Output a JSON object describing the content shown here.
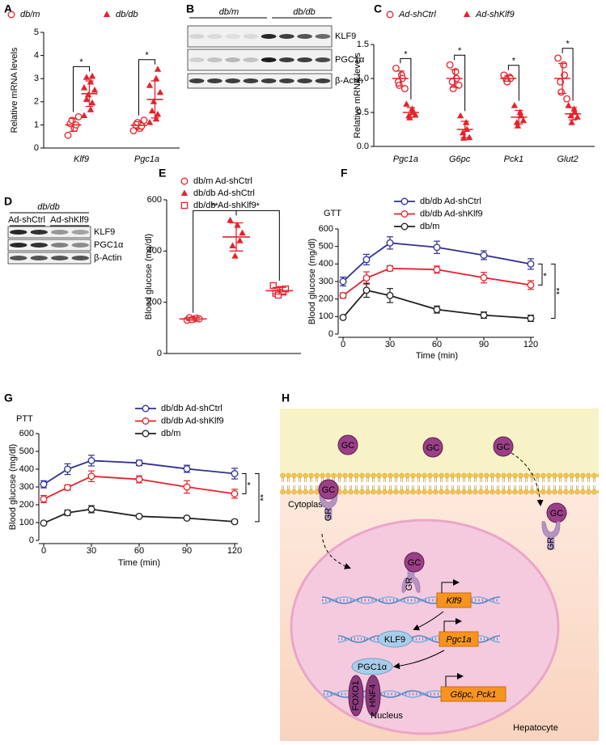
{
  "panel_labels": [
    "A",
    "B",
    "C",
    "D",
    "E",
    "F",
    "G",
    "H"
  ],
  "chart_data": [
    {
      "type": "dot",
      "y_label": "Relative mRNA levels",
      "categories": [
        "Klf9",
        "Pgc1a"
      ],
      "ylim": [
        0,
        5
      ],
      "yticks": [
        0,
        1,
        2,
        3,
        4,
        5
      ],
      "significance": [
        "*",
        "*"
      ],
      "series": [
        {
          "name": "db/m",
          "color": "#e8202a",
          "marker": "circle-open",
          "values": [
            [
              0.55,
              0.85,
              1.0,
              1.05,
              1.2,
              1.35
            ],
            [
              0.75,
              0.85,
              0.95,
              1.0,
              1.1,
              1.2
            ]
          ],
          "mean": [
            1.0,
            0.98
          ],
          "sd": [
            0.28,
            0.16
          ]
        },
        {
          "name": "db/db",
          "color": "#e8202a",
          "marker": "triangle",
          "values": [
            [
              1.4,
              1.65,
              1.95,
              2.1,
              2.3,
              2.5,
              2.6,
              2.85,
              3.1,
              3.05
            ],
            [
              1.1,
              1.25,
              1.45,
              1.6,
              2.0,
              2.4,
              2.7,
              3.0,
              3.4
            ]
          ],
          "mean": [
            2.35,
            2.1
          ],
          "sd": [
            0.55,
            0.8
          ]
        }
      ]
    },
    {
      "type": "dot",
      "y_label": "Relative mRNA levels",
      "categories": [
        "Pgc1a",
        "G6pc",
        "Pck1",
        "Glut2"
      ],
      "ylim": [
        0,
        1.5
      ],
      "yticks": [
        {
          "value": 0,
          "label": "0.0"
        },
        {
          "value": 0.5,
          "label": "0.5"
        },
        {
          "value": 1,
          "label": "1.0"
        },
        {
          "value": 1.5,
          "label": "1.5"
        }
      ],
      "significance": [
        "*",
        "*",
        "*",
        "*"
      ],
      "series": [
        {
          "name": "Ad-shCtrl",
          "color": "#e8202a",
          "marker": "circle-open",
          "values": [
            [
              1.15,
              1.05,
              1.0,
              0.95,
              0.9,
              0.85
            ],
            [
              1.2,
              1.1,
              1.0,
              0.95,
              0.85,
              0.9
            ],
            [
              1.05,
              1.02,
              1.0,
              0.98,
              0.95
            ],
            [
              1.3,
              1.2,
              1.05,
              0.95,
              0.8,
              0.7
            ]
          ],
          "mean": [
            1.0,
            1.0,
            1.0,
            1.0
          ],
          "sd": [
            0.11,
            0.13,
            0.04,
            0.22
          ]
        },
        {
          "name": "Ad-shKlf9",
          "color": "#e8202a",
          "marker": "triangle",
          "values": [
            [
              0.62,
              0.55,
              0.5,
              0.45,
              0.42,
              0.46
            ],
            [
              0.45,
              0.35,
              0.25,
              0.2,
              0.12,
              0.13
            ],
            [
              0.6,
              0.5,
              0.45,
              0.35,
              0.3,
              0.38
            ],
            [
              0.6,
              0.55,
              0.5,
              0.45,
              0.35,
              0.43
            ]
          ],
          "mean": [
            0.5,
            0.25,
            0.43,
            0.48
          ],
          "sd": [
            0.07,
            0.12,
            0.1,
            0.09
          ]
        }
      ]
    },
    {
      "type": "dot",
      "y_label": "Blood glucose (mg/dl)",
      "ylim": [
        0,
        600
      ],
      "yticks": [
        0,
        200,
        400,
        600
      ],
      "significance": [
        "**",
        "*"
      ],
      "series": [
        {
          "name": "db/m Ad-shCtrl",
          "color": "#e8202a",
          "marker": "circle-open",
          "values": [
            [
              130,
              135,
              138,
              140,
              132,
              135
            ]
          ],
          "mean": [
            135
          ],
          "sd": [
            6
          ]
        },
        {
          "name": "db/db Ad-shCtrl",
          "color": "#e8202a",
          "marker": "triangle",
          "values": [
            [
              520,
              500,
              440,
              420,
              380,
              470
            ]
          ],
          "mean": [
            455
          ],
          "sd": [
            55
          ]
        },
        {
          "name": "db/db Ad-shKlf9",
          "color": "#e8202a",
          "marker": "square-open",
          "values": [
            [
              265,
              250,
              240,
              235,
              228,
              252
            ]
          ],
          "mean": [
            245
          ],
          "sd": [
            13
          ]
        }
      ]
    },
    {
      "type": "line",
      "annotation": "GTT",
      "x_label": "Time (min)",
      "y_label": "Blood glucose (mg/dl)",
      "x": [
        0,
        15,
        30,
        60,
        90,
        120
      ],
      "xlim": [
        0,
        120
      ],
      "xticks": [
        0,
        30,
        60,
        90,
        120
      ],
      "ylim": [
        0,
        600
      ],
      "yticks": [
        0,
        100,
        200,
        300,
        400,
        500,
        600
      ],
      "significance": [
        "*",
        "**"
      ],
      "series": [
        {
          "name": "db/db Ad-shCtrl",
          "color": "#2e3192",
          "values": [
            300,
            425,
            520,
            495,
            450,
            400
          ],
          "errors": [
            25,
            30,
            35,
            35,
            25,
            30
          ]
        },
        {
          "name": "db/db Ad-shKlf9",
          "color": "#e8202a",
          "values": [
            220,
            320,
            375,
            368,
            322,
            280
          ],
          "errors": [
            15,
            35,
            15,
            20,
            30,
            25
          ]
        },
        {
          "name": "db/m",
          "color": "#231f20",
          "values": [
            95,
            250,
            220,
            140,
            108,
            90
          ],
          "errors": [
            5,
            40,
            40,
            20,
            18,
            18
          ]
        }
      ]
    },
    {
      "type": "line",
      "annotation": "PTT",
      "x_label": "Time (min)",
      "y_label": "Blood glucose (mg/dl)",
      "x": [
        0,
        15,
        30,
        60,
        90,
        120
      ],
      "xlim": [
        0,
        120
      ],
      "xticks": [
        0,
        30,
        60,
        90,
        120
      ],
      "ylim": [
        0,
        600
      ],
      "yticks": [
        0,
        100,
        200,
        300,
        400,
        500,
        600
      ],
      "significance": [
        "*",
        "**"
      ],
      "series": [
        {
          "name": "db/db Ad-shCtrl",
          "color": "#2e3192",
          "values": [
            315,
            400,
            448,
            435,
            402,
            375
          ],
          "errors": [
            20,
            30,
            30,
            15,
            20,
            30
          ]
        },
        {
          "name": "db/db Ad-shKlf9",
          "color": "#e8202a",
          "values": [
            232,
            297,
            360,
            343,
            300,
            262
          ],
          "errors": [
            20,
            15,
            30,
            20,
            35,
            25
          ]
        },
        {
          "name": "db/m",
          "color": "#231f20",
          "values": [
            97,
            155,
            175,
            135,
            125,
            105
          ],
          "errors": [
            5,
            15,
            20,
            5,
            10,
            10
          ]
        }
      ]
    }
  ],
  "blots": [
    {
      "groups": [
        "db/m",
        "db/db"
      ],
      "rows": [
        "KLF9",
        "PGC1α",
        "β-Actin"
      ]
    },
    {
      "group": "db/db",
      "lanes": [
        "Ad-shCtrl",
        "Ad-shKlf9"
      ],
      "rows": [
        "KLF9",
        "PGC1α",
        "β-Actin"
      ]
    }
  ],
  "diagram": {
    "compartments": [
      "Cytoplasm",
      "Nucleus",
      "Hepatocyte"
    ],
    "ligand": [
      "GC",
      "GC",
      "GC",
      "GC",
      "GC",
      "GC"
    ],
    "receptor": [
      "GR",
      "GR",
      "GR"
    ],
    "genes": [
      "Klf9",
      "Pgc1a",
      "G6pc, Pck1"
    ],
    "proteins": [
      "KLF9",
      "PGC1α",
      "FOXO1",
      "HNF4"
    ]
  }
}
